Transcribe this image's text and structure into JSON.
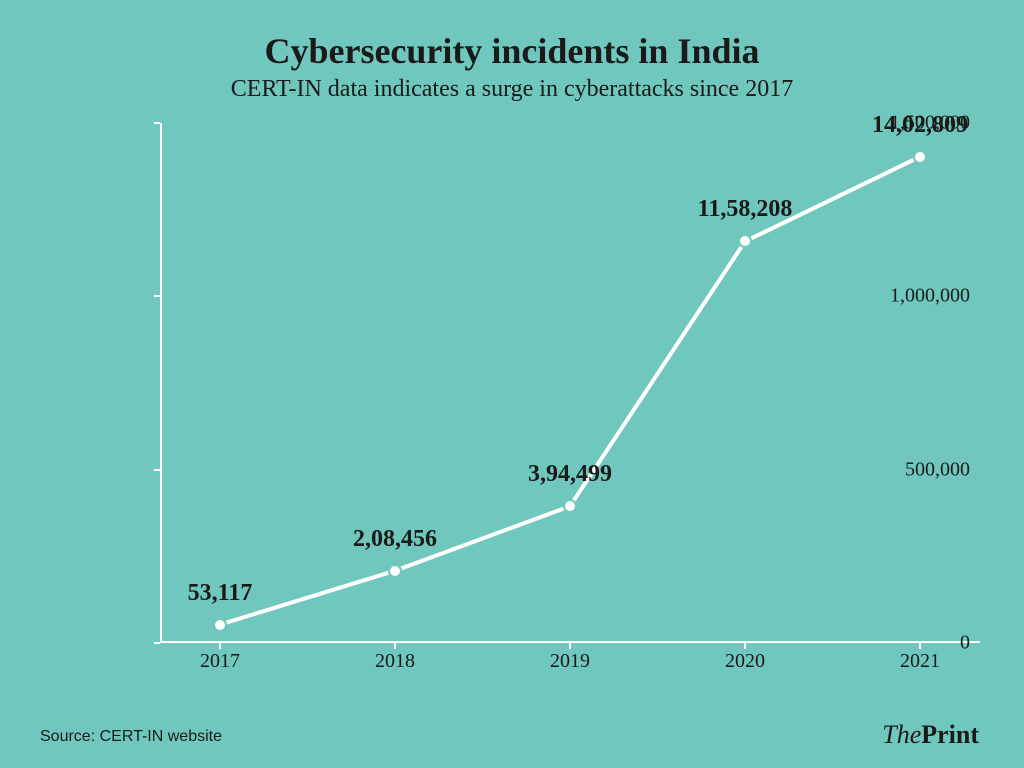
{
  "chart": {
    "type": "line",
    "title": "Cybersecurity incidents in India",
    "subtitle": "CERT-IN data indicates a surge in cyberattacks since 2017",
    "title_fontsize": 36,
    "subtitle_fontsize": 24,
    "title_color": "#1a1a1a",
    "background_color": "#6fc7bd",
    "axis_color": "#ffffff",
    "line_color": "#ffffff",
    "line_width": 4,
    "marker_fill": "#ffffff",
    "marker_stroke": "#6fc7bd",
    "marker_size": 14,
    "tick_fontsize": 20,
    "tick_color": "#1a1a1a",
    "label_fontsize": 24,
    "label_color": "#1a1a1a",
    "ylim": [
      0,
      1500000
    ],
    "yticks": [
      {
        "value": 0,
        "label": "0"
      },
      {
        "value": 500000,
        "label": "500,000"
      },
      {
        "value": 1000000,
        "label": "1,000,000"
      },
      {
        "value": 1500000,
        "label": "1,500,000"
      }
    ],
    "xdata": [
      "2017",
      "2018",
      "2019",
      "2020",
      "2021"
    ],
    "ydata": [
      53117,
      208456,
      394499,
      1158208,
      1402809
    ],
    "data_labels": [
      "53,117",
      "2,08,456",
      "3,94,499",
      "11,58,208",
      "14,02,809"
    ]
  },
  "source": {
    "text": "Source: CERT-IN website",
    "fontsize": 16,
    "color": "#1a1a1a"
  },
  "logo": {
    "prefix": "The",
    "main": "Print",
    "fontsize": 26,
    "color": "#1a1a1a"
  }
}
